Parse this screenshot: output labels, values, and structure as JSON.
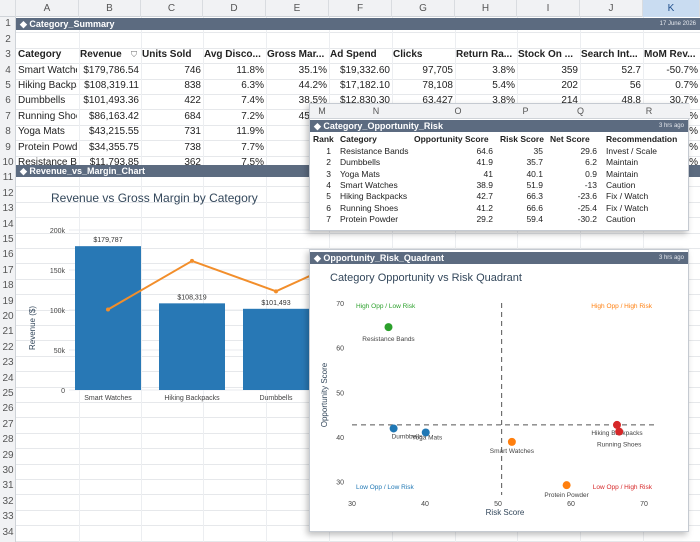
{
  "columns": [
    "A",
    "B",
    "C",
    "D",
    "E",
    "F",
    "G",
    "H",
    "I",
    "J",
    "K"
  ],
  "rows": [
    "1",
    "2",
    "3",
    "4",
    "5",
    "6",
    "7",
    "8",
    "9",
    "10",
    "11",
    "12",
    "13",
    "14",
    "15",
    "16",
    "17",
    "18",
    "19",
    "20",
    "21",
    "22",
    "23",
    "24",
    "25",
    "26",
    "27",
    "28",
    "29",
    "30",
    "31",
    "32",
    "33",
    "34"
  ],
  "summary": {
    "title": "Category_Summary",
    "timestamp": "17 June 2026",
    "headers": [
      "Category",
      "Revenue",
      "Units Sold",
      "Avg Disco...",
      "Gross Mar...",
      "Ad Spend",
      "Clicks",
      "Return Ra...",
      "Stock On ...",
      "Search Int...",
      "MoM Rev..."
    ],
    "rows": [
      [
        "Smart Watche",
        "$179,786.54",
        "746",
        "11.8%",
        "35.1%",
        "$19,332.60",
        "97,705",
        "3.8%",
        "359",
        "52.7",
        "-50.7%"
      ],
      [
        "Hiking Backpa",
        "$108,319.11",
        "838",
        "6.3%",
        "44.2%",
        "$17,182.10",
        "78,108",
        "5.4%",
        "202",
        "56",
        "0.7%"
      ],
      [
        "Dumbbells",
        "$101,493.36",
        "422",
        "7.4%",
        "38.5%",
        "$12,830.30",
        "63,427",
        "3.8%",
        "214",
        "48.8",
        "30.7%"
      ],
      [
        "Running Shoes",
        "$86,163.42",
        "684",
        "7.2%",
        "45.4%",
        "$15,006.00",
        "70,694",
        "6.1%",
        "321",
        "56.8",
        "-38.3%"
      ],
      [
        "Yoga Mats",
        "$43,215.55",
        "731",
        "11.9%",
        "5",
        "",
        "",
        "",
        "",
        "",
        "7.3%"
      ],
      [
        "Protein Powde",
        "$34,355.75",
        "738",
        "7.7%",
        "4",
        "",
        "",
        "",
        "",
        "",
        "5.0%"
      ],
      [
        "Resistance Ba",
        "$11,793.85",
        "362",
        "7.5%",
        "6",
        "",
        "",
        "",
        "",
        "",
        "8.7%"
      ]
    ]
  },
  "revenue_chart": {
    "bar_title": "Revenue_vs_Margin_Chart",
    "chart_data": {
      "type": "bar",
      "title": "Revenue vs Gross Margin by Category",
      "ylabel": "Revenue ($)",
      "categories": [
        "Smart Watches",
        "Hiking Backpacks",
        "Dumbbells"
      ],
      "series": [
        {
          "values": [
            179787,
            108319,
            101493
          ]
        },
        {
          "values": [
            35.1,
            44.2,
            38.5
          ]
        }
      ],
      "data_labels": [
        "$179,787",
        "$108,319",
        "$101,493"
      ],
      "yticks": [
        "0",
        "50k",
        "100k",
        "150k",
        "200k"
      ],
      "ylim": [
        0,
        200000
      ]
    }
  },
  "risk_table": {
    "columns": [
      "M",
      "N",
      "O",
      "P",
      "Q",
      "R"
    ],
    "title": "Category_Opportunity_Risk",
    "timestamp": "3 hrs ago",
    "headers": [
      "Rank",
      "Category",
      "Opportunity Score",
      "Risk Score",
      "Net Score",
      "Recommendation"
    ],
    "rows": [
      [
        "1",
        "Resistance Bands",
        "64.6",
        "35",
        "29.6",
        "Invest / Scale"
      ],
      [
        "2",
        "Dumbbells",
        "41.9",
        "35.7",
        "6.2",
        "Maintain"
      ],
      [
        "3",
        "Yoga Mats",
        "41",
        "40.1",
        "0.9",
        "Maintain"
      ],
      [
        "4",
        "Smart Watches",
        "38.9",
        "51.9",
        "-13",
        "Caution"
      ],
      [
        "5",
        "Hiking Backpacks",
        "42.7",
        "66.3",
        "-23.6",
        "Fix / Watch"
      ],
      [
        "6",
        "Running Shoes",
        "41.2",
        "66.6",
        "-25.4",
        "Fix / Watch"
      ],
      [
        "7",
        "Protein Powder",
        "29.2",
        "59.4",
        "-30.2",
        "Caution"
      ]
    ]
  },
  "quadrant": {
    "bar_title": "Opportunity_Risk_Quadrant",
    "timestamp": "3 hrs ago",
    "chart_data": {
      "type": "scatter",
      "title": "Category Opportunity vs Risk Quadrant",
      "xlabel": "Risk Score",
      "ylabel": "Opportunity Score",
      "xlim": [
        30,
        70
      ],
      "ylim": [
        27,
        70
      ],
      "xticks": [
        30,
        40,
        50,
        60,
        70
      ],
      "yticks": [
        30,
        40,
        50,
        60,
        70
      ],
      "divider_x": 50.5,
      "divider_y": 42.7,
      "quadrant_labels": [
        "High Opp / Low Risk",
        "High Opp / High Risk",
        "Low Opp / Low Risk",
        "Low Opp / High Risk"
      ],
      "points": [
        {
          "name": "Resistance Bands",
          "x": 35,
          "y": 64.6,
          "color": "#2ca02c"
        },
        {
          "name": "Dumbbells",
          "x": 35.7,
          "y": 41.9,
          "color": "#1f77b4"
        },
        {
          "name": "Yoga Mats",
          "x": 40.1,
          "y": 41,
          "color": "#1f77b4"
        },
        {
          "name": "Smart Watches",
          "x": 51.9,
          "y": 38.9,
          "color": "#ff7f0e"
        },
        {
          "name": "Hiking Backpacks",
          "x": 66.3,
          "y": 42.7,
          "color": "#d62728"
        },
        {
          "name": "Running Shoes",
          "x": 66.6,
          "y": 41.2,
          "color": "#d62728"
        },
        {
          "name": "Protein Powder",
          "x": 59.4,
          "y": 29.2,
          "color": "#ff7f0e"
        }
      ]
    }
  },
  "colors": {
    "header_bar": "#5c6b80",
    "bar": "#2878b5",
    "line": "#f28e2b"
  }
}
